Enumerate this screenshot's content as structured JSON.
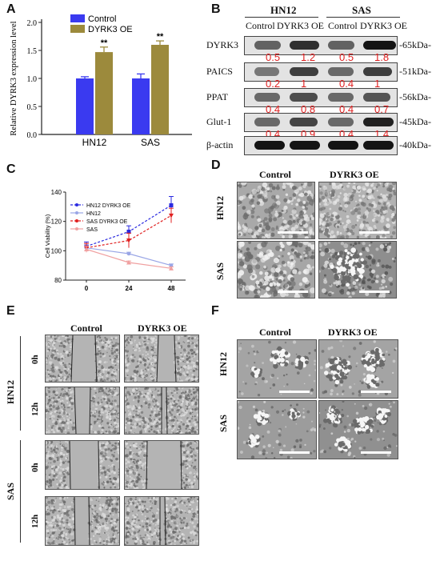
{
  "panels": {
    "A": "A",
    "B": "B",
    "C": "C",
    "D": "D",
    "E": "E",
    "F": "F"
  },
  "panel_a": {
    "chart_data": {
      "type": "bar",
      "categories": [
        "HN12",
        "SAS"
      ],
      "series": [
        {
          "name": "Control",
          "values": [
            1.0,
            1.0
          ],
          "errors": [
            0.03,
            0.08
          ],
          "color": "#3a3af0"
        },
        {
          "name": "DYRK3 OE",
          "values": [
            1.47,
            1.6
          ],
          "errors": [
            0.09,
            0.07
          ],
          "color": "#9c8a3c"
        }
      ],
      "ylabel": "Relative DYRK3 expression level",
      "ylim": [
        0.0,
        2.0
      ],
      "yticks": [
        "0.0",
        "0.5",
        "1.0",
        "1.5",
        "2.0"
      ],
      "annotations": [
        "**",
        "**"
      ],
      "legend_position": "top-left"
    }
  },
  "panel_b": {
    "groups": [
      "HN12",
      "SAS"
    ],
    "lanes": [
      "Control",
      "DYRK3 OE",
      "Control",
      "DYRK3 OE"
    ],
    "rows": [
      {
        "protein": "DYRK3",
        "size": "-65kDa-",
        "values": [
          "0.5",
          "1.2",
          "0.5",
          "1.8"
        ]
      },
      {
        "protein": "PAICS",
        "size": "-51kDa-",
        "values": [
          "0.2",
          "1",
          "0.4",
          "1"
        ]
      },
      {
        "protein": "PPAT",
        "size": "-56kDa-",
        "values": [
          "0.4",
          "0.8",
          "0.4",
          "0.7"
        ]
      },
      {
        "protein": "Glut-1",
        "size": "-45kDa-",
        "values": [
          "0.4",
          "0.9",
          "0.4",
          "1.4"
        ]
      },
      {
        "protein": "β-actin",
        "size": "-40kDa-",
        "values": [
          "",
          "",
          "",
          ""
        ]
      }
    ]
  },
  "panel_c": {
    "chart_data": {
      "type": "line",
      "x": [
        0,
        24,
        48
      ],
      "xticks": [
        "0",
        "24",
        "48"
      ],
      "ylabel": "Cell Viability (%)",
      "ylim": [
        80,
        140
      ],
      "yticks": [
        "80",
        "100",
        "120",
        "140"
      ],
      "series": [
        {
          "name": "HN12 DYRK3 OE",
          "values": [
            103,
            113,
            131
          ],
          "errors": [
            3,
            4,
            6
          ],
          "color": "#2a2ae0",
          "dash": true,
          "marker": "square"
        },
        {
          "name": "HN12",
          "values": [
            102,
            98,
            90
          ],
          "errors": [
            2,
            1,
            1
          ],
          "color": "#9aa6e6",
          "dash": false,
          "marker": "circle"
        },
        {
          "name": "SAS DYRK3 OE",
          "values": [
            102,
            107,
            124
          ],
          "errors": [
            3,
            5,
            5
          ],
          "color": "#e02020",
          "dash": true,
          "marker": "triangle-down"
        },
        {
          "name": "SAS",
          "values": [
            101,
            92,
            88
          ],
          "errors": [
            2,
            1,
            1
          ],
          "color": "#f0a0a0",
          "dash": false,
          "marker": "triangle-up"
        }
      ],
      "legend_position": "top-left"
    }
  },
  "panel_d": {
    "cols": [
      "Control",
      "DYRK3 OE"
    ],
    "rows": [
      "HN12",
      "SAS"
    ]
  },
  "panel_e": {
    "cols": [
      "Control",
      "DYRK3 OE"
    ],
    "groups": [
      "HN12",
      "SAS"
    ],
    "times": [
      "0h",
      "12h"
    ]
  },
  "panel_f": {
    "cols": [
      "Control",
      "DYRK3 OE"
    ],
    "rows": [
      "HN12",
      "SAS"
    ]
  }
}
